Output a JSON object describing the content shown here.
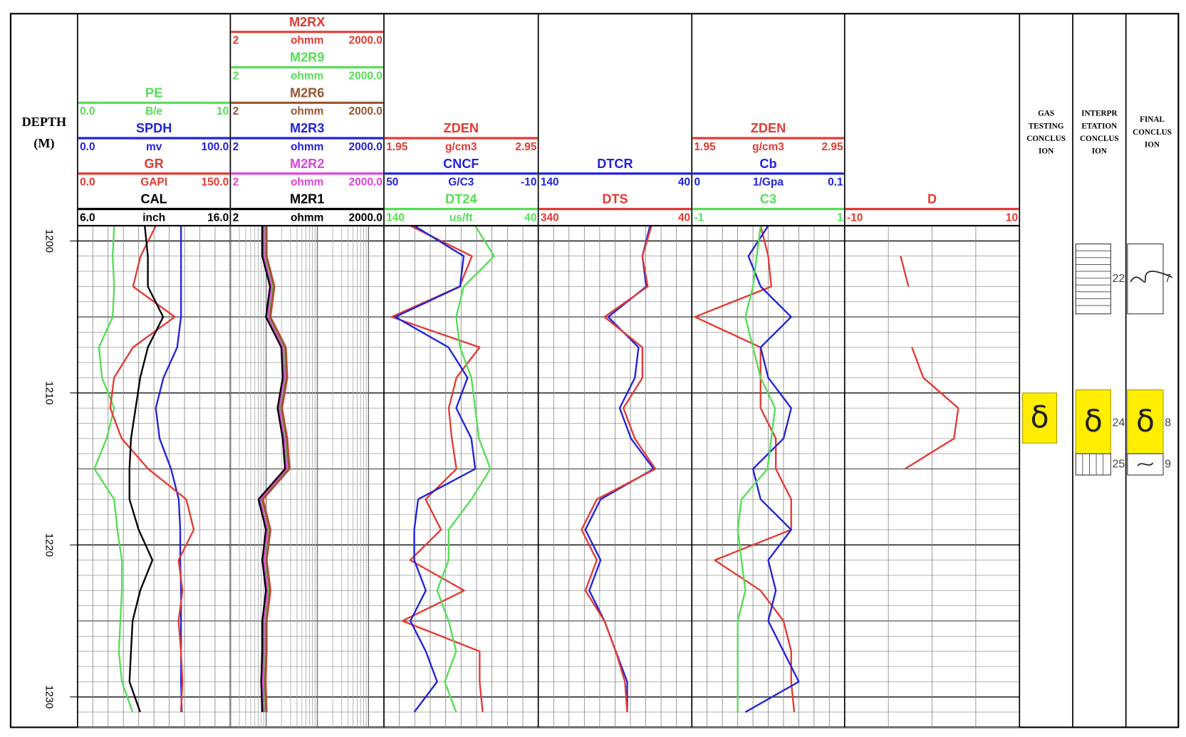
{
  "chart_data": {
    "type": "well-log",
    "depth_label": [
      "DEPTH",
      "(M)"
    ],
    "ylim": [
      1199,
      1232
    ],
    "yticks": [
      1200,
      1210,
      1220,
      1230
    ],
    "depth": [
      1199,
      1201,
      1203,
      1205,
      1207,
      1209,
      1211,
      1213,
      1215,
      1217,
      1219,
      1221,
      1223,
      1225,
      1227,
      1229,
      1231
    ],
    "tracks": [
      {
        "log_scale": false,
        "curves": [
          {
            "name": "PE",
            "color": "#55dd55",
            "unit": "B/e",
            "xlim": [
              0,
              10
            ],
            "xticks": [
              {
                "value": 0,
                "label": "0.0"
              },
              10
            ],
            "values": [
              2.4,
              2.3,
              2.4,
              2.3,
              1.4,
              1.6,
              2.4,
              1.9,
              1.1,
              2.4,
              2.6,
              2.9,
              2.9,
              2.8,
              2.7,
              2.9,
              3.6
            ]
          },
          {
            "name": "SPDH",
            "color": "#2222dd",
            "unit": "mv",
            "xlim": [
              0,
              100
            ],
            "xticks": [
              {
                "value": 0,
                "label": "0.0"
              },
              {
                "value": 100,
                "label": "100.0"
              }
            ],
            "values": [
              67.7,
              67.7,
              67.7,
              67.7,
              65.2,
              56.2,
              51.2,
              53.7,
              61.2,
              66.2,
              67.2,
              67.2,
              67.7,
              67.7,
              67.7,
              67.7,
              68.2
            ]
          },
          {
            "name": "GR",
            "color": "#e33a33",
            "unit": "GAPI",
            "xlim": [
              0,
              150
            ],
            "xticks": [
              {
                "value": 0,
                "label": "0.0"
              },
              {
                "value": 150,
                "label": "150.0"
              }
            ],
            "values": [
              76.9,
              61.9,
              54.5,
              95.5,
              54.5,
              35.8,
              32.1,
              43.3,
              69.4,
              106.7,
              114.1,
              99.2,
              103,
              99.2,
              101.5,
              103,
              101.5
            ]
          },
          {
            "name": "CAL",
            "color": "#000000",
            "unit": "inch",
            "xlim": [
              6,
              16
            ],
            "xticks": [
              {
                "value": 6,
                "label": "6.0"
              },
              {
                "value": 16,
                "label": "16.0"
              }
            ],
            "values": [
              10.4,
              10.6,
              10.6,
              11.6,
              10.6,
              10.1,
              9.8,
              9.5,
              9.4,
              9.4,
              10,
              10.9,
              10.1,
              9.6,
              9.5,
              9.4,
              10.1
            ]
          }
        ]
      },
      {
        "log_scale": true,
        "curves": [
          {
            "name": "M2RX",
            "color": "#e33a33",
            "unit": "ohmm",
            "xlim": [
              2,
              2000
            ],
            "xticks": [
              2,
              {
                "value": 2000,
                "label": "2000.0"
              }
            ],
            "values": [
              10.3,
              10.3,
              14.6,
              12.2,
              24.4,
              26.0,
              20.5,
              26.0,
              28.8,
              8.7,
              12.2,
              10.3,
              12.2,
              10.3,
              10.3,
              9.8,
              10.3
            ]
          },
          {
            "name": "M2R9",
            "color": "#55dd55",
            "unit": "ohmm",
            "xlim": [
              2,
              2000
            ],
            "xticks": [
              2,
              {
                "value": 2000,
                "label": "2000.0"
              }
            ],
            "values": [
              9.7,
              9.7,
              13.7,
              11.4,
              22.8,
              24.3,
              19.2,
              24.3,
              26.9,
              8.2,
              11.4,
              9.7,
              11.4,
              9.7,
              9.7,
              9.2,
              9.7
            ]
          },
          {
            "name": "M2R6",
            "color": "#9a5530",
            "unit": "ohmm",
            "xlim": [
              2,
              2000
            ],
            "xticks": [
              2,
              {
                "value": 2000,
                "label": "2000.0"
              }
            ],
            "values": [
              10.0,
              10.0,
              14.2,
              11.8,
              23.6,
              25.1,
              19.9,
              25.1,
              27.8,
              8.4,
              11.8,
              10.0,
              11.8,
              10.0,
              10.0,
              9.5,
              10.0
            ]
          },
          {
            "name": "M2R3",
            "color": "#2222dd",
            "unit": "ohmm",
            "xlim": [
              2,
              2000
            ],
            "xticks": [
              2,
              {
                "value": 2000,
                "label": "2000.0"
              }
            ],
            "values": [
              8.8,
              8.7,
              12.3,
              10.2,
              20.4,
              21.7,
              17.2,
              21.7,
              24.2,
              7.4,
              10.2,
              8.7,
              10.2,
              8.7,
              8.7,
              8.3,
              8.7
            ]
          },
          {
            "name": "M2R2",
            "color": "#dd44dd",
            "unit": "ohmm",
            "xlim": [
              2,
              2000
            ],
            "xticks": [
              2,
              {
                "value": 2000,
                "label": "2000.0"
              }
            ],
            "values": [
              9.0,
              9.0,
              12.7,
              10.6,
              21.2,
              22.6,
              17.9,
              22.6,
              25.0,
              7.6,
              10.6,
              9.0,
              10.6,
              9.0,
              9.0,
              8.6,
              9.0
            ]
          },
          {
            "name": "M2R1",
            "color": "#000000",
            "unit": "ohmm",
            "xlim": [
              2,
              2000
            ],
            "xticks": [
              2,
              {
                "value": 2000,
                "label": "2000.0"
              }
            ],
            "values": [
              8.4,
              8.4,
              11.9,
              9.9,
              19.8,
              21.1,
              16.7,
              21.1,
              23.4,
              7.1,
              9.9,
              8.4,
              9.9,
              8.4,
              8.4,
              8.0,
              8.4
            ]
          }
        ]
      },
      {
        "log_scale": false,
        "curves": [
          {
            "name": "ZDEN",
            "color": "#e33a33",
            "unit": "g/cm3",
            "xlim": [
              1.95,
              2.95
            ],
            "xticks": [
              1.95,
              2.95
            ],
            "values": [
              2.12,
              2.52,
              2.44,
              2.0,
              2.57,
              2.42,
              2.37,
              2.39,
              2.42,
              2.22,
              2.32,
              2.12,
              2.47,
              2.07,
              2.57,
              2.57,
              2.59
            ]
          },
          {
            "name": "CNCF",
            "color": "#2222dd",
            "unit": "G/C3",
            "xlim": [
              50,
              -10
            ],
            "xticks": [
              50,
              -10
            ],
            "values": [
              38.2,
              19.0,
              20.4,
              45.6,
              24.9,
              17.5,
              21.9,
              16.0,
              14.5,
              36.7,
              38.2,
              38.2,
              33.7,
              39.7,
              33.7,
              29.3,
              38.2
            ]
          },
          {
            "name": "DT24",
            "color": "#55dd55",
            "unit": "us/ft",
            "xlim": [
              140,
              40
            ],
            "xticks": [
              140,
              40
            ],
            "values": [
              80.9,
              68.6,
              88.3,
              93.2,
              90.7,
              83.3,
              80.9,
              78.4,
              71.0,
              83.3,
              98.1,
              98.1,
              105.5,
              98.1,
              93.2,
              100.6,
              93.2
            ]
          }
        ]
      },
      {
        "log_scale": false,
        "curves": [
          {
            "name": "DTCR",
            "color": "#2222dd",
            "xlim": [
              140,
              40
            ],
            "xticks": [
              140,
              40
            ],
            "values": [
              67.2,
              72.2,
              69.7,
              94.5,
              74.7,
              77.1,
              87.0,
              79.6,
              64.8,
              99.4,
              109.3,
              99.4,
              106.8,
              96.9,
              89.5,
              82.1,
              82.1
            ]
          },
          {
            "name": "DTS",
            "color": "#e33a33",
            "xlim": [
              340,
              40
            ],
            "xticks": [
              340,
              40
            ],
            "values": [
              118.7,
              136.6,
              126.2,
              210.8,
              136.6,
              136.6,
              173.7,
              151.4,
              111.3,
              225.7,
              255.4,
              225.7,
              247.9,
              210.8,
              188.5,
              170.7,
              166.3
            ]
          }
        ]
      },
      {
        "log_scale": false,
        "curves": [
          {
            "name": "ZDEN",
            "color": "#e33a33",
            "unit": "g/cm3",
            "xlim": [
              1.95,
              2.95
            ],
            "xticks": [
              1.95,
              2.95
            ],
            "values": [
              2.4,
              2.45,
              2.47,
              1.97,
              2.4,
              2.4,
              2.4,
              2.5,
              2.5,
              2.6,
              2.6,
              2.1,
              2.4,
              2.55,
              2.6,
              2.6,
              2.62
            ]
          },
          {
            "name": "Cb",
            "color": "#2222dd",
            "unit": "1/Gpa",
            "xlim": [
              0,
              0.1
            ],
            "xticks": [
              0,
              0.1
            ],
            "values": [
              0.05,
              0.037,
              0.045,
              0.065,
              0.045,
              0.05,
              0.065,
              0.06,
              0.04,
              0.045,
              0.065,
              0.05,
              0.055,
              0.05,
              0.06,
              0.07,
              0.035
            ]
          },
          {
            "name": "C3",
            "color": "#55dd55",
            "xlim": [
              -1,
              1
            ],
            "xticks": [
              -1,
              1
            ],
            "values": [
              -0.1,
              -0.15,
              -0.2,
              -0.3,
              -0.2,
              -0.1,
              0.09,
              0.04,
              -0.01,
              -0.35,
              -0.4,
              -0.35,
              -0.3,
              -0.4,
              -0.4,
              -0.4,
              -0.4
            ]
          }
        ]
      },
      {
        "log_scale": false,
        "curves": [
          {
            "name": "D",
            "color": "#e33a33",
            "xlim": [
              -10,
              10
            ],
            "xticks": [
              -10,
              10
            ],
            "values": [
              null,
              -3.6,
              -2.7,
              null,
              -2.3,
              -1.0,
              3.0,
              2.5,
              -3.1,
              null,
              null,
              null,
              null,
              null,
              null,
              null,
              null
            ]
          }
        ]
      }
    ],
    "conclusions": [
      {
        "header": [
          "GAS",
          "TESTING",
          "CONCLUS",
          "ION"
        ],
        "intervals": [
          {
            "top": 1210.0,
            "bottom": 1213.3,
            "symbol": "δ",
            "color": "#ffee00"
          }
        ]
      },
      {
        "header": [
          "INTERPR",
          "ETATION",
          "CONCLUS",
          "ION"
        ],
        "intervals": [
          {
            "top": 1200.2,
            "bottom": 1204.8,
            "label": "22",
            "pattern": "hlines"
          },
          {
            "top": 1209.8,
            "bottom": 1214.0,
            "label": "24",
            "symbol": "δ",
            "color": "#ffee00"
          },
          {
            "top": 1214.0,
            "bottom": 1215.4,
            "label": "25",
            "pattern": "vlines"
          }
        ]
      },
      {
        "header": [
          "FINAL",
          "CONCLUS",
          "ION"
        ],
        "intervals": [
          {
            "top": 1200.2,
            "bottom": 1204.8,
            "label": "7",
            "pattern": "wave"
          },
          {
            "top": 1209.8,
            "bottom": 1214.0,
            "label": "8",
            "symbol": "δ",
            "color": "#ffee00"
          },
          {
            "top": 1214.0,
            "bottom": 1215.4,
            "label": "9",
            "pattern": "tilde"
          }
        ]
      }
    ]
  }
}
